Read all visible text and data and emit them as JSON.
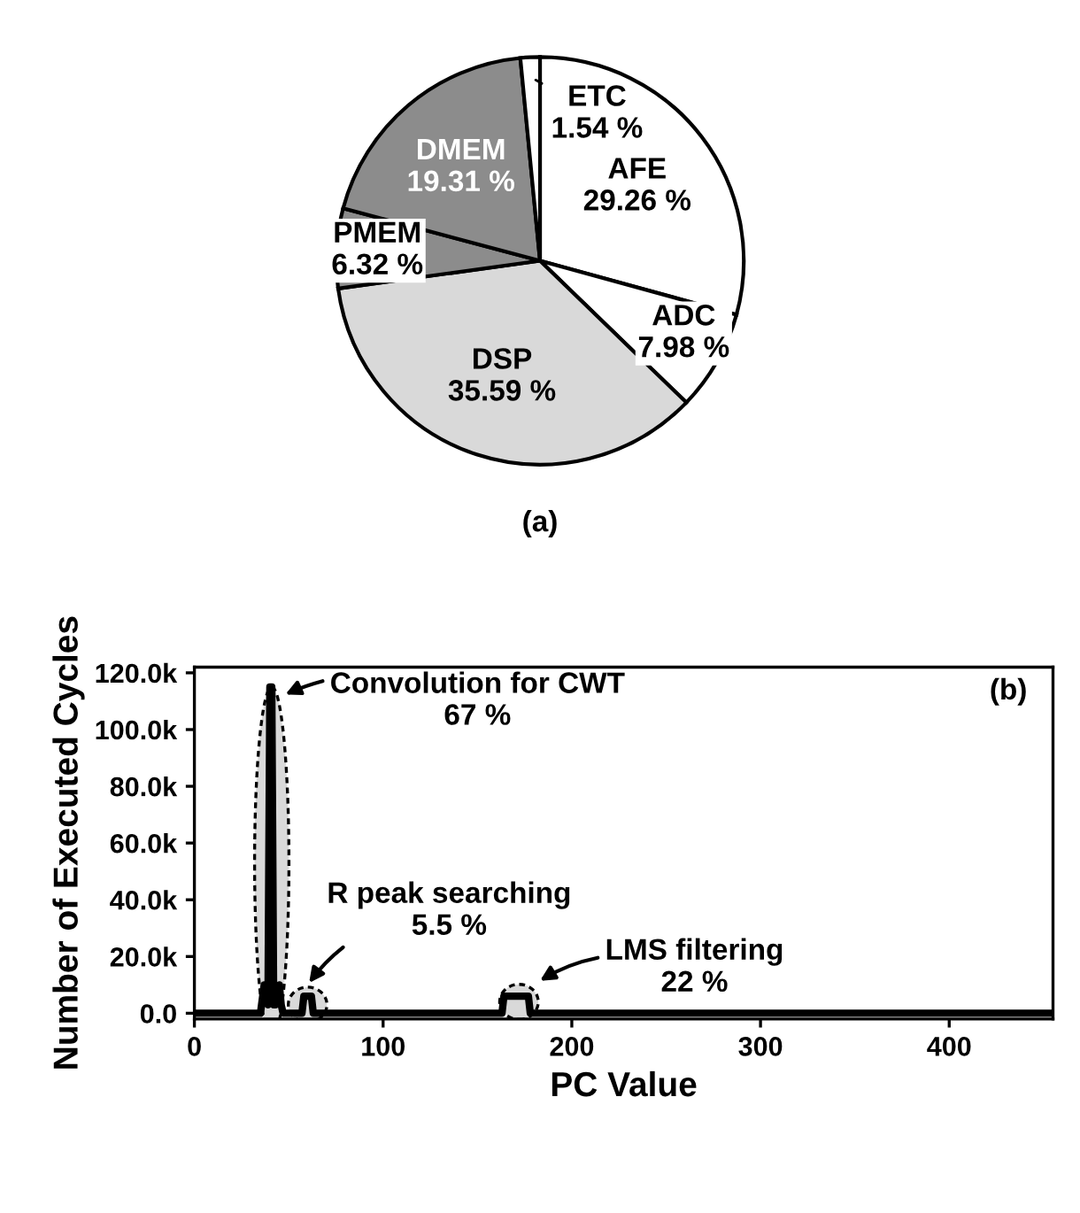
{
  "chart_data": [
    {
      "type": "pie",
      "title": "(a)",
      "categories": [
        "AFE",
        "ADC",
        "DSP",
        "PMEM",
        "DMEM",
        "ETC"
      ],
      "values": [
        29.26,
        7.98,
        35.59,
        6.32,
        19.31,
        1.54
      ],
      "value_labels": [
        "29.26 %",
        "7.98 %",
        "35.59 %",
        "6.32 %",
        "19.31 %",
        "1.54 %"
      ],
      "colors": [
        "#ffffff",
        "#ffffff",
        "#d9d9d9",
        "#8c8c8c",
        "#8c8c8c",
        "#ffffff"
      ]
    },
    {
      "type": "line",
      "title": "(b)",
      "xlabel": "PC Value",
      "ylabel": "Number of Executed Cycles",
      "x": [
        0,
        35,
        37,
        38,
        39,
        40,
        41,
        42,
        43,
        45,
        46,
        47,
        48,
        57,
        58,
        62,
        63,
        163,
        164,
        177,
        178,
        455
      ],
      "series": [
        {
          "color": "#000000",
          "values": [
            0,
            0,
            10000,
            10000,
            3000,
            115000,
            115000,
            3000,
            3000,
            10000,
            3000,
            0,
            0,
            0,
            6000,
            6000,
            0,
            0,
            6000,
            6000,
            0,
            0
          ]
        }
      ],
      "xlim": [
        0,
        455
      ],
      "ylim": [
        -2000,
        122000
      ],
      "xticks": [
        0,
        100,
        200,
        300,
        400
      ],
      "yticks": [
        {
          "value": 0,
          "label": "0.0"
        },
        {
          "value": 20000,
          "label": "20.0k"
        },
        {
          "value": 40000,
          "label": "40.0k"
        },
        {
          "value": 60000,
          "label": "60.0k"
        },
        {
          "value": 80000,
          "label": "80.0k"
        },
        {
          "value": 100000,
          "label": "100.0k"
        },
        {
          "value": 120000,
          "label": "120.0k"
        }
      ],
      "annotations": [
        {
          "text": "Convolution for CWT\n67 %",
          "x": 41,
          "y": 112000
        },
        {
          "text": "R peak searching\n5.5 %",
          "x": 60,
          "y": 7000
        },
        {
          "text": "LMS filtering\n22 %",
          "x": 182,
          "y": 8000
        }
      ]
    }
  ]
}
